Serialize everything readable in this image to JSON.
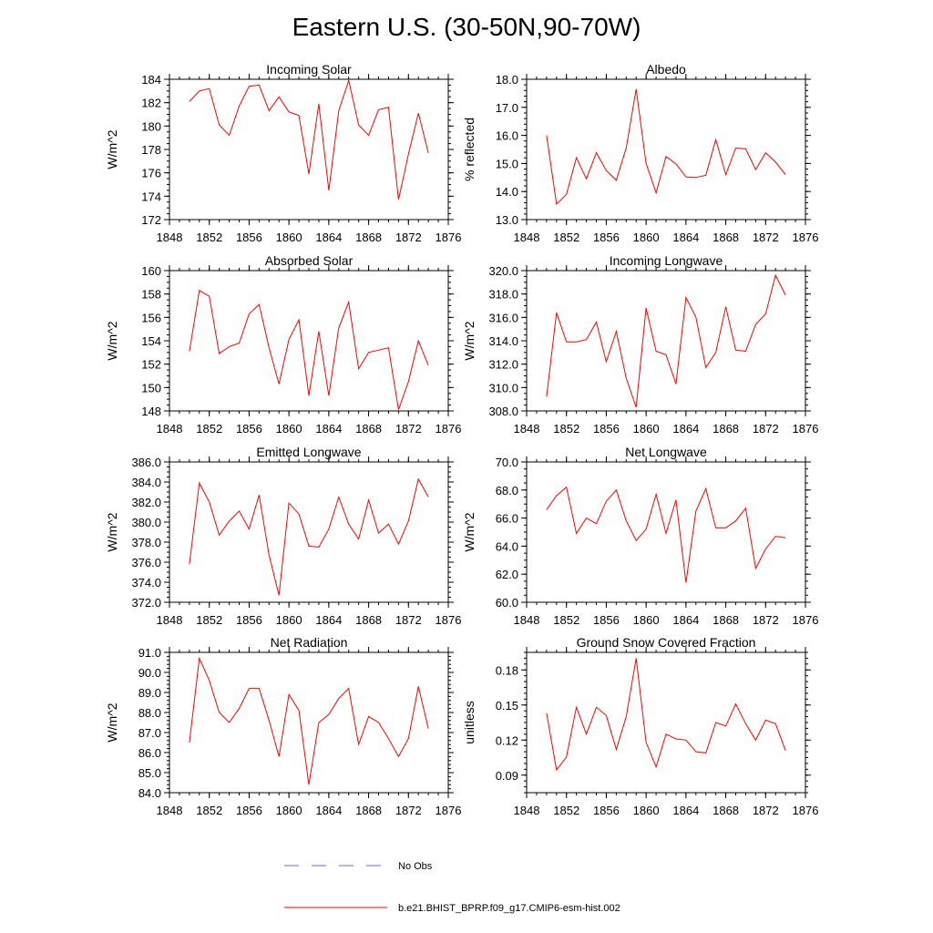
{
  "title": "Eastern U.S. (30-50N,90-70W)",
  "colors": {
    "series": "#ff0000",
    "obs": "#6b6bd6",
    "axis": "#000000"
  },
  "legend": [
    {
      "label": "No Obs",
      "style": "dashed",
      "color": "#6b6bd6"
    },
    {
      "label": "b.e21.BHIST_BPRP.f09_g17.CMIP6-esm-hist.002",
      "style": "solid",
      "color": "#ff0000"
    }
  ],
  "chart_data": [
    {
      "type": "line",
      "title": "Incoming Solar",
      "ylabel": "W/m^2",
      "xlim": [
        1848,
        1876
      ],
      "xticks": [
        1848,
        1852,
        1856,
        1860,
        1864,
        1868,
        1872,
        1876
      ],
      "ylim": [
        172,
        184
      ],
      "yticks": [
        172,
        174,
        176,
        178,
        180,
        182,
        184
      ],
      "ydecimals": 0,
      "yminor": 0.5,
      "x": [
        1850,
        1851,
        1852,
        1853,
        1854,
        1855,
        1856,
        1857,
        1858,
        1859,
        1860,
        1861,
        1862,
        1863,
        1864,
        1865,
        1866,
        1867,
        1868,
        1869,
        1870,
        1871,
        1872,
        1873,
        1874
      ],
      "values": [
        182.1,
        183.0,
        183.2,
        180.1,
        179.2,
        181.7,
        183.4,
        183.5,
        181.3,
        182.5,
        181.2,
        180.9,
        175.9,
        181.9,
        174.5,
        181.3,
        183.9,
        180.1,
        179.2,
        181.4,
        181.6,
        173.7,
        177.6,
        181.1,
        177.7
      ]
    },
    {
      "type": "line",
      "title": "Albedo",
      "ylabel": "% reflected",
      "xlim": [
        1848,
        1876
      ],
      "xticks": [
        1848,
        1852,
        1856,
        1860,
        1864,
        1868,
        1872,
        1876
      ],
      "ylim": [
        13,
        18
      ],
      "yticks": [
        13,
        14,
        15,
        16,
        17,
        18
      ],
      "ydecimals": 1,
      "yminor": 0.2,
      "x": [
        1850,
        1851,
        1852,
        1853,
        1854,
        1855,
        1856,
        1857,
        1858,
        1859,
        1860,
        1861,
        1862,
        1863,
        1864,
        1865,
        1866,
        1867,
        1868,
        1869,
        1870,
        1871,
        1872,
        1873,
        1874
      ],
      "values": [
        16.0,
        13.55,
        13.9,
        15.2,
        14.45,
        15.38,
        14.75,
        14.4,
        15.55,
        17.65,
        15.0,
        13.95,
        15.25,
        14.98,
        14.52,
        14.5,
        14.58,
        15.85,
        14.6,
        15.55,
        15.52,
        14.78,
        15.38,
        15.05,
        14.6
      ]
    },
    {
      "type": "line",
      "title": "Absorbed Solar",
      "ylabel": "W/m^2",
      "xlim": [
        1848,
        1876
      ],
      "xticks": [
        1848,
        1852,
        1856,
        1860,
        1864,
        1868,
        1872,
        1876
      ],
      "ylim": [
        148,
        160
      ],
      "yticks": [
        148,
        150,
        152,
        154,
        156,
        158,
        160
      ],
      "ydecimals": 0,
      "yminor": 0.5,
      "x": [
        1850,
        1851,
        1852,
        1853,
        1854,
        1855,
        1856,
        1857,
        1858,
        1859,
        1860,
        1861,
        1862,
        1863,
        1864,
        1865,
        1866,
        1867,
        1868,
        1869,
        1870,
        1871,
        1872,
        1873,
        1874
      ],
      "values": [
        153.1,
        158.3,
        157.8,
        152.9,
        153.5,
        153.8,
        156.3,
        157.1,
        153.4,
        150.3,
        154.1,
        155.8,
        149.3,
        154.8,
        149.3,
        155.1,
        157.3,
        151.6,
        153.0,
        153.2,
        153.4,
        148.1,
        150.5,
        154.0,
        151.9
      ]
    },
    {
      "type": "line",
      "title": "Incoming Longwave",
      "ylabel": "W/m^2",
      "xlim": [
        1848,
        1876
      ],
      "xticks": [
        1848,
        1852,
        1856,
        1860,
        1864,
        1868,
        1872,
        1876
      ],
      "ylim": [
        308,
        320
      ],
      "yticks": [
        308,
        310,
        312,
        314,
        316,
        318,
        320
      ],
      "ydecimals": 1,
      "yminor": 0.5,
      "x": [
        1850,
        1851,
        1852,
        1853,
        1854,
        1855,
        1856,
        1857,
        1858,
        1859,
        1860,
        1861,
        1862,
        1863,
        1864,
        1865,
        1866,
        1867,
        1868,
        1869,
        1870,
        1871,
        1872,
        1873,
        1874
      ],
      "values": [
        309.2,
        316.4,
        313.9,
        313.9,
        314.1,
        315.6,
        312.2,
        314.8,
        310.8,
        308.3,
        316.8,
        313.1,
        312.8,
        310.3,
        317.7,
        316.0,
        311.7,
        313.0,
        316.9,
        313.2,
        313.1,
        315.4,
        316.3,
        319.6,
        317.9
      ]
    },
    {
      "type": "line",
      "title": "Emitted Longwave",
      "ylabel": "W/m^2",
      "xlim": [
        1848,
        1876
      ],
      "xticks": [
        1848,
        1852,
        1856,
        1860,
        1864,
        1868,
        1872,
        1876
      ],
      "ylim": [
        372,
        386
      ],
      "yticks": [
        372,
        374,
        376,
        378,
        380,
        382,
        384,
        386
      ],
      "ydecimals": 1,
      "yminor": 0.5,
      "x": [
        1850,
        1851,
        1852,
        1853,
        1854,
        1855,
        1856,
        1857,
        1858,
        1859,
        1860,
        1861,
        1862,
        1863,
        1864,
        1865,
        1866,
        1867,
        1868,
        1869,
        1870,
        1871,
        1872,
        1873,
        1874
      ],
      "values": [
        375.8,
        383.9,
        382.0,
        378.7,
        380.1,
        381.1,
        379.3,
        382.7,
        376.7,
        372.7,
        381.9,
        380.8,
        377.6,
        377.5,
        379.3,
        382.5,
        379.8,
        378.3,
        382.2,
        378.9,
        379.8,
        377.8,
        380.1,
        384.3,
        382.5
      ]
    },
    {
      "type": "line",
      "title": "Net Longwave",
      "ylabel": "W/m^2",
      "xlim": [
        1848,
        1876
      ],
      "xticks": [
        1848,
        1852,
        1856,
        1860,
        1864,
        1868,
        1872,
        1876
      ],
      "ylim": [
        60,
        70
      ],
      "yticks": [
        60,
        62,
        64,
        66,
        68,
        70
      ],
      "ydecimals": 1,
      "yminor": 0.5,
      "x": [
        1850,
        1851,
        1852,
        1853,
        1854,
        1855,
        1856,
        1857,
        1858,
        1859,
        1860,
        1861,
        1862,
        1863,
        1864,
        1865,
        1866,
        1867,
        1868,
        1869,
        1870,
        1871,
        1872,
        1873,
        1874
      ],
      "values": [
        66.6,
        67.6,
        68.2,
        64.9,
        66.0,
        65.6,
        67.2,
        68.0,
        65.8,
        64.4,
        65.2,
        67.7,
        64.9,
        67.3,
        61.4,
        66.5,
        68.1,
        65.3,
        65.3,
        65.8,
        66.7,
        62.4,
        63.8,
        64.7,
        64.6
      ]
    },
    {
      "type": "line",
      "title": "Net Radiation",
      "ylabel": "W/m^2",
      "xlim": [
        1848,
        1876
      ],
      "xticks": [
        1848,
        1852,
        1856,
        1860,
        1864,
        1868,
        1872,
        1876
      ],
      "ylim": [
        84,
        91
      ],
      "yticks": [
        84,
        85,
        86,
        87,
        88,
        89,
        90,
        91
      ],
      "ydecimals": 1,
      "yminor": 0.2,
      "x": [
        1850,
        1851,
        1852,
        1853,
        1854,
        1855,
        1856,
        1857,
        1858,
        1859,
        1860,
        1861,
        1862,
        1863,
        1864,
        1865,
        1866,
        1867,
        1868,
        1869,
        1870,
        1871,
        1872,
        1873,
        1874
      ],
      "values": [
        86.5,
        90.7,
        89.6,
        88.0,
        87.5,
        88.2,
        89.2,
        89.2,
        87.6,
        85.8,
        88.9,
        88.1,
        84.4,
        87.5,
        87.9,
        88.7,
        89.2,
        86.4,
        87.8,
        87.5,
        86.7,
        85.8,
        86.7,
        89.3,
        87.2
      ]
    },
    {
      "type": "line",
      "title": "Ground Snow Covered Fraction",
      "ylabel": "unitless",
      "xlim": [
        1848,
        1876
      ],
      "xticks": [
        1848,
        1852,
        1856,
        1860,
        1864,
        1868,
        1872,
        1876
      ],
      "ylim": [
        0.075,
        0.195
      ],
      "yticks": [
        0.09,
        0.12,
        0.15,
        0.18
      ],
      "ydecimals": 2,
      "yminor": 0.005,
      "x": [
        1850,
        1851,
        1852,
        1853,
        1854,
        1855,
        1856,
        1857,
        1858,
        1859,
        1860,
        1861,
        1862,
        1863,
        1864,
        1865,
        1866,
        1867,
        1868,
        1869,
        1870,
        1871,
        1872,
        1873,
        1874
      ],
      "values": [
        0.143,
        0.0945,
        0.1055,
        0.148,
        0.125,
        0.148,
        0.141,
        0.112,
        0.14,
        0.19,
        0.118,
        0.097,
        0.125,
        0.121,
        0.12,
        0.11,
        0.109,
        0.135,
        0.132,
        0.151,
        0.134,
        0.12,
        0.137,
        0.134,
        0.111
      ]
    }
  ]
}
